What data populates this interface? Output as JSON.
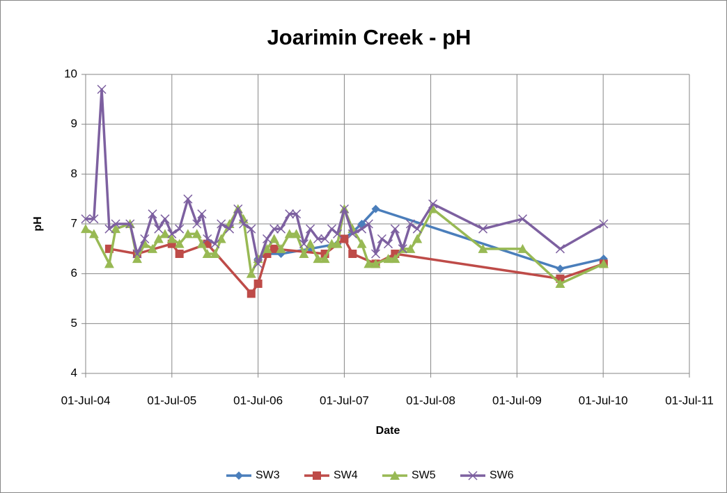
{
  "chart_data": {
    "type": "line",
    "title": "Joarimin Creek - pH",
    "x_label": "Date",
    "y_label": "pH",
    "xlim": [
      "2004-07-01",
      "2011-07-01"
    ],
    "xticks": [
      {
        "value": "2004-07-01",
        "label": "01-Jul-04"
      },
      {
        "value": "2005-07-01",
        "label": "01-Jul-05"
      },
      {
        "value": "2006-07-01",
        "label": "01-Jul-06"
      },
      {
        "value": "2007-07-01",
        "label": "01-Jul-07"
      },
      {
        "value": "2008-07-01",
        "label": "01-Jul-08"
      },
      {
        "value": "2009-07-01",
        "label": "01-Jul-09"
      },
      {
        "value": "2010-07-01",
        "label": "01-Jul-10"
      },
      {
        "value": "2011-07-01",
        "label": "01-Jul-11"
      }
    ],
    "ylim": [
      4,
      10
    ],
    "yticks": [
      4,
      5,
      6,
      7,
      8,
      9,
      10
    ],
    "grid": true,
    "legend": "bottom",
    "series": [
      {
        "name": "SW3",
        "color": "#4a7ebb",
        "marker": "diamond",
        "x": [
          "2006-07-01",
          "2006-08-08",
          "2006-10-06",
          "2007-02-07",
          "2007-06-02",
          "2007-07-01",
          "2007-09-13",
          "2007-11-11",
          "2009-12-31",
          "2010-07-03"
        ],
        "values": [
          6.3,
          6.4,
          6.4,
          6.5,
          6.6,
          6.7,
          7.0,
          7.3,
          6.1,
          6.3
        ]
      },
      {
        "name": "SW4",
        "color": "#be4b48",
        "marker": "square",
        "x": [
          "2004-10-09",
          "2005-02-04",
          "2005-07-01",
          "2005-08-02",
          "2005-11-28",
          "2006-06-02",
          "2006-07-01",
          "2006-08-08",
          "2006-09-07",
          "2007-04-10",
          "2007-07-01",
          "2007-08-05",
          "2007-11-11",
          "2008-02-01",
          "2009-12-31",
          "2010-07-03"
        ],
        "values": [
          6.5,
          6.4,
          6.6,
          6.4,
          6.6,
          5.6,
          5.8,
          6.4,
          6.5,
          6.4,
          6.7,
          6.4,
          6.2,
          6.4,
          5.9,
          6.2
        ]
      },
      {
        "name": "SW5",
        "color": "#98b954",
        "marker": "triangle",
        "x": [
          "2004-07-01",
          "2004-08-05",
          "2004-10-09",
          "2004-11-05",
          "2005-01-05",
          "2005-02-04",
          "2005-03-08",
          "2005-04-10",
          "2005-05-06",
          "2005-06-02",
          "2005-07-01",
          "2005-08-02",
          "2005-09-07",
          "2005-10-15",
          "2005-11-05",
          "2005-11-28",
          "2005-12-31",
          "2006-01-26",
          "2006-03-02",
          "2006-04-07",
          "2006-04-30",
          "2006-06-02",
          "2006-07-01",
          "2006-08-08",
          "2006-09-07",
          "2006-10-06",
          "2006-11-11",
          "2006-12-10",
          "2007-01-11",
          "2007-02-07",
          "2007-03-11",
          "2007-04-10",
          "2007-05-09",
          "2007-06-02",
          "2007-07-01",
          "2007-08-05",
          "2007-09-13",
          "2007-10-12",
          "2007-11-11",
          "2008-01-03",
          "2008-02-01",
          "2008-03-04",
          "2008-04-06",
          "2008-05-05",
          "2008-07-10",
          "2009-02-07",
          "2009-07-25",
          "2009-12-31",
          "2010-07-03"
        ],
        "values": [
          6.9,
          6.8,
          6.2,
          6.9,
          7.0,
          6.3,
          6.6,
          6.5,
          6.7,
          6.8,
          6.7,
          6.6,
          6.8,
          6.8,
          6.6,
          6.4,
          6.4,
          6.7,
          7.0,
          7.3,
          7.1,
          6.0,
          6.3,
          6.5,
          6.7,
          6.5,
          6.8,
          6.8,
          6.4,
          6.6,
          6.3,
          6.3,
          6.6,
          6.6,
          7.3,
          6.9,
          6.6,
          6.2,
          6.2,
          6.3,
          6.3,
          6.5,
          6.5,
          6.7,
          7.3,
          6.5,
          6.5,
          5.8,
          6.2
        ]
      },
      {
        "name": "SW6",
        "color": "#7d60a0",
        "marker": "x",
        "x": [
          "2004-07-01",
          "2004-08-05",
          "2004-09-07",
          "2004-10-09",
          "2004-11-05",
          "2005-01-05",
          "2005-02-04",
          "2005-03-08",
          "2005-04-10",
          "2005-05-06",
          "2005-06-02",
          "2005-07-01",
          "2005-08-02",
          "2005-09-07",
          "2005-10-15",
          "2005-11-05",
          "2005-11-28",
          "2005-12-31",
          "2006-01-26",
          "2006-03-02",
          "2006-04-07",
          "2006-04-30",
          "2006-06-02",
          "2006-07-01",
          "2006-08-08",
          "2006-09-07",
          "2006-10-06",
          "2006-11-11",
          "2006-12-10",
          "2007-01-11",
          "2007-02-07",
          "2007-03-11",
          "2007-04-10",
          "2007-05-09",
          "2007-06-02",
          "2007-07-01",
          "2007-08-05",
          "2007-09-13",
          "2007-10-12",
          "2007-11-11",
          "2007-12-07",
          "2008-01-03",
          "2008-02-01",
          "2008-03-04",
          "2008-04-06",
          "2008-05-05",
          "2008-07-10",
          "2009-02-07",
          "2009-07-25",
          "2009-12-31",
          "2010-07-03"
        ],
        "values": [
          7.1,
          7.1,
          9.7,
          6.9,
          7.0,
          7.0,
          6.4,
          6.7,
          7.2,
          6.9,
          7.1,
          6.8,
          6.9,
          7.5,
          7.0,
          7.2,
          6.7,
          6.6,
          7.0,
          6.9,
          7.3,
          7.0,
          6.9,
          6.2,
          6.7,
          6.9,
          6.9,
          7.2,
          7.2,
          6.6,
          6.9,
          6.7,
          6.7,
          6.9,
          6.8,
          7.3,
          6.8,
          6.9,
          7.0,
          6.4,
          6.7,
          6.6,
          6.9,
          6.5,
          7.0,
          6.9,
          7.4,
          6.9,
          7.1,
          6.5,
          7.0
        ]
      }
    ]
  }
}
